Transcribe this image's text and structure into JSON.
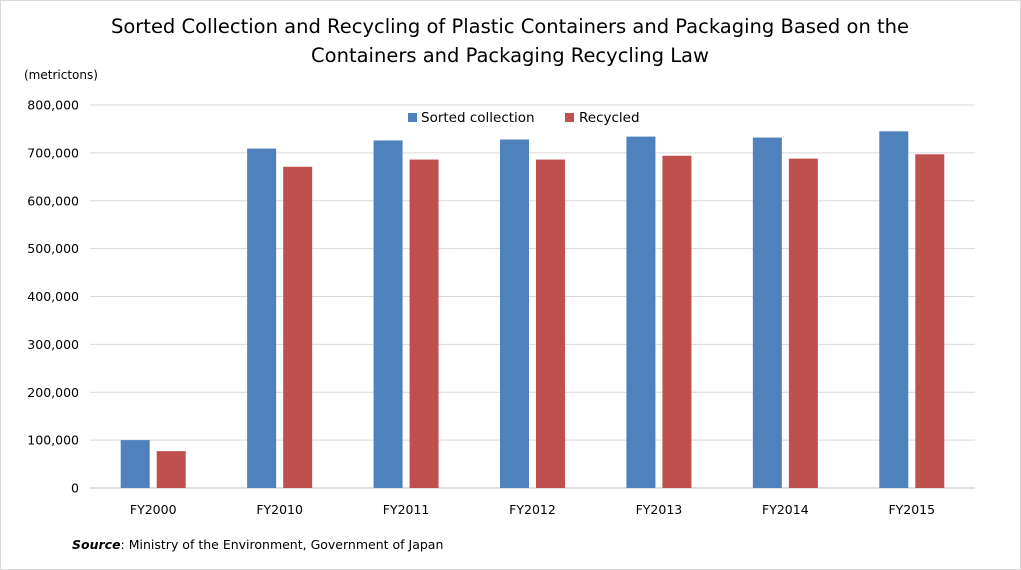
{
  "chart_data": {
    "type": "bar",
    "title": [
      "Sorted Collection and Recycling of Plastic Containers and Packaging Based on the",
      "Containers and Packaging Recycling Law"
    ],
    "ylabel": "(metrictons)",
    "xlabel": "",
    "ylim": [
      0,
      800000
    ],
    "yticks": [
      0,
      100000,
      200000,
      300000,
      400000,
      500000,
      600000,
      700000,
      800000
    ],
    "ytick_labels": [
      "0",
      "100,000",
      "200,000",
      "300,000",
      "400,000",
      "500,000",
      "600,000",
      "700,000",
      "800,000"
    ],
    "grid": true,
    "legend_position": "top-center",
    "categories": [
      "FY2000",
      "FY2010",
      "FY2011",
      "FY2012",
      "FY2013",
      "FY2014",
      "FY2015"
    ],
    "series": [
      {
        "name": "Sorted collection",
        "color": "#4f81bd",
        "values": [
          100000,
          709000,
          726000,
          728000,
          734000,
          732000,
          745000
        ]
      },
      {
        "name": "Recycled",
        "color": "#c0504d",
        "values": [
          77000,
          671000,
          686000,
          686000,
          694000,
          688000,
          697000
        ]
      }
    ],
    "source_label": "Source",
    "source_text": ": Ministry of the Environment,  Government  of Japan"
  }
}
